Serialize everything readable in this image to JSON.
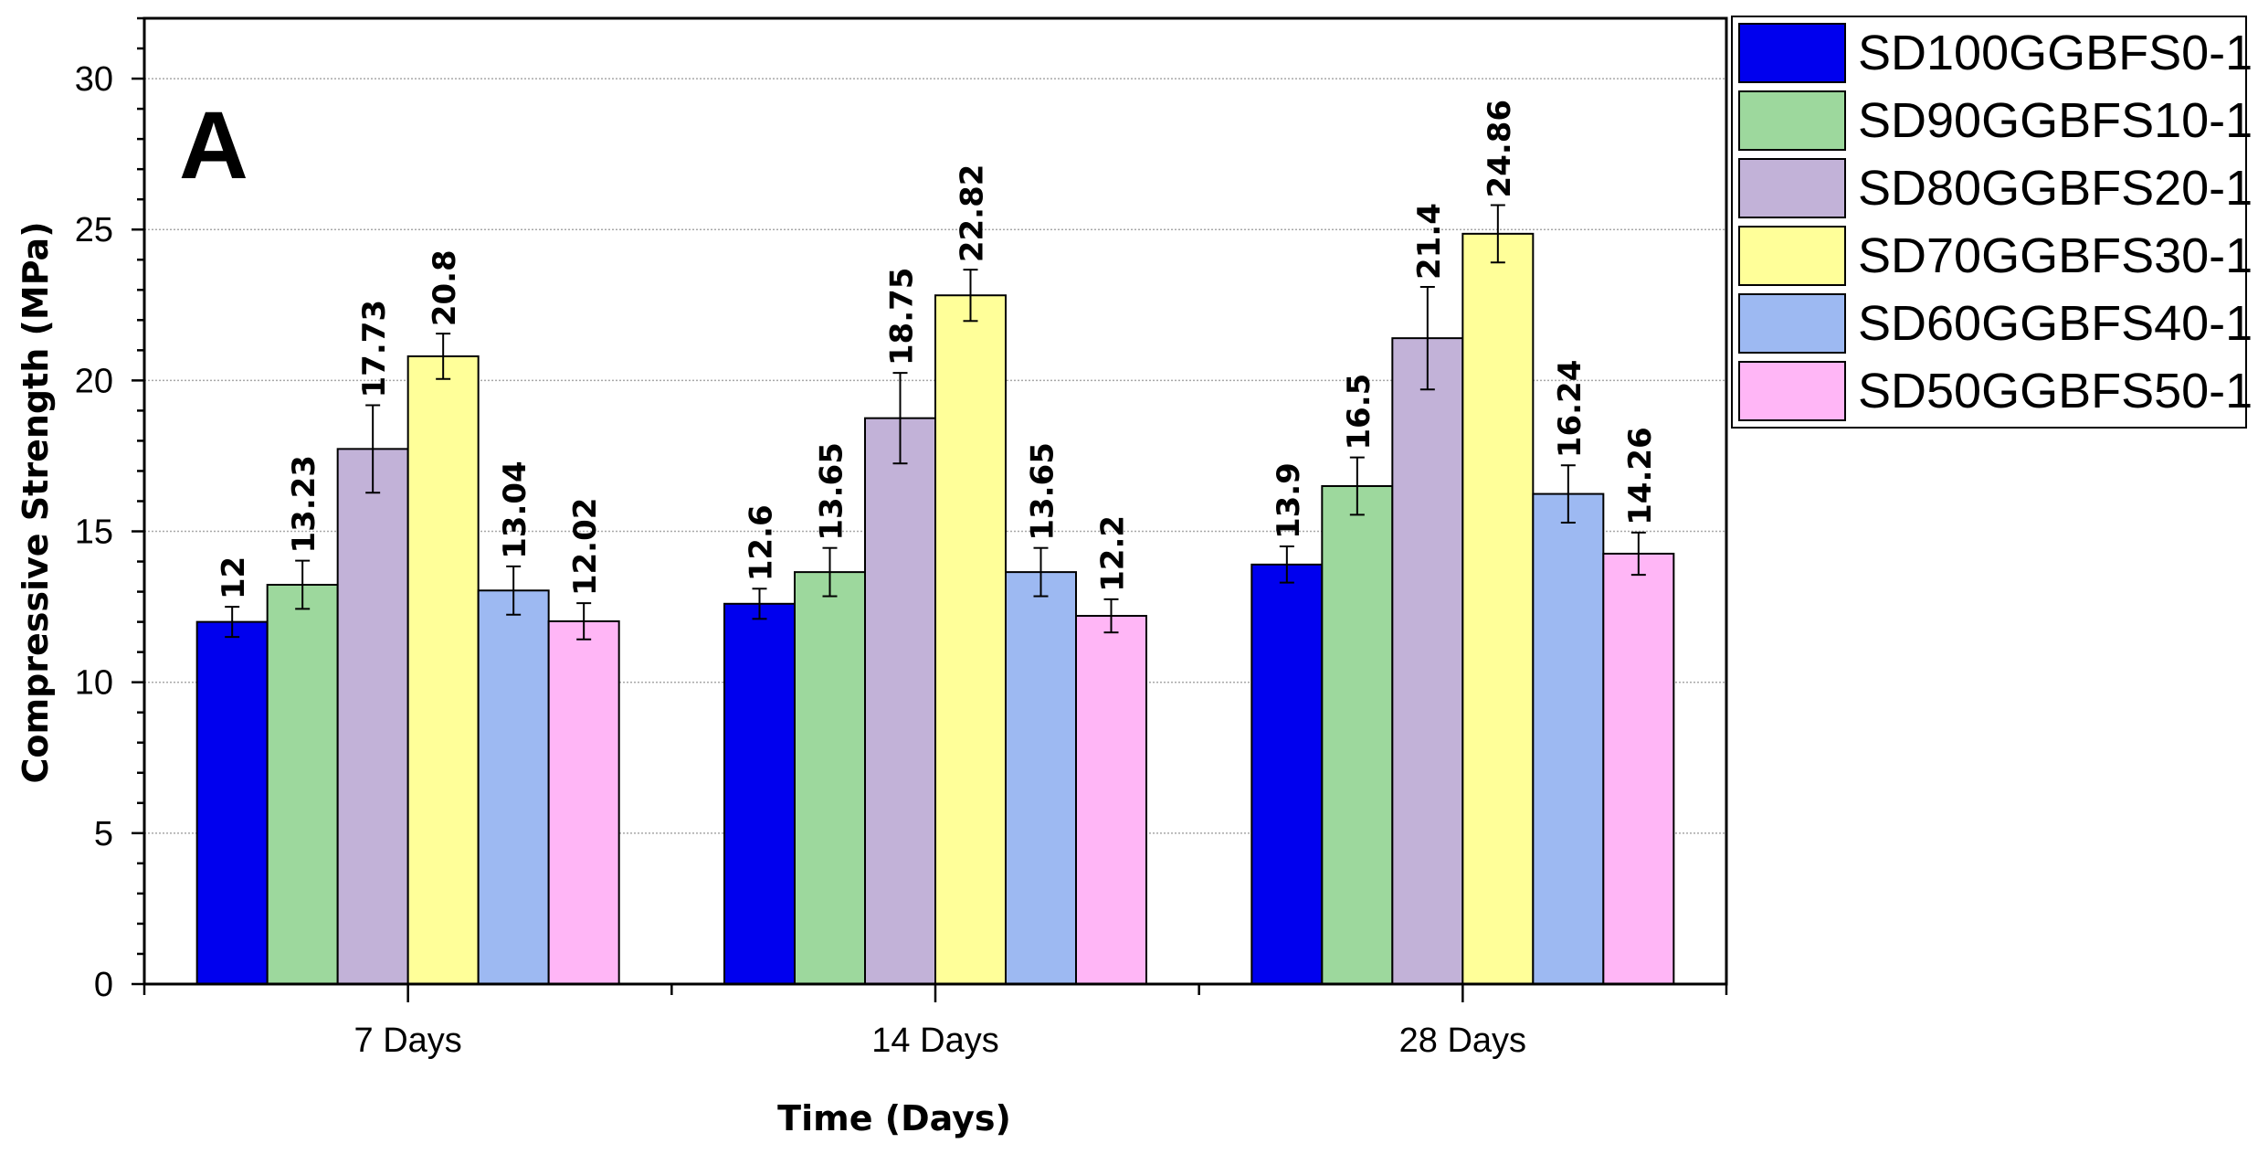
{
  "chart_data": {
    "type": "bar",
    "panel_label": "A",
    "xlabel": "Time (Days)",
    "ylabel": "Compressive Strength (MPa)",
    "ylim": [
      0,
      32
    ],
    "yticks": [
      0,
      5,
      10,
      15,
      20,
      25,
      30
    ],
    "grid": true,
    "legend_position": "outside-right-top",
    "categories": [
      "7 Days",
      "14 Days",
      "28 Days"
    ],
    "series": [
      {
        "name": "SD100GGBFS0-1",
        "color": "#0000ee",
        "values": [
          12,
          12.6,
          13.9
        ],
        "errors": [
          0.5,
          0.5,
          0.6
        ],
        "labels": [
          "12",
          "12.6",
          "13.9"
        ]
      },
      {
        "name": "SD90GGBFS10-1",
        "color": "#9dd89d",
        "values": [
          13.23,
          13.65,
          16.5
        ],
        "errors": [
          0.8,
          0.8,
          0.95
        ],
        "labels": [
          "13.23",
          "13.65",
          "16.5"
        ]
      },
      {
        "name": "SD80GGBFS20-1",
        "color": "#c2b2d8",
        "values": [
          17.73,
          18.75,
          21.4
        ],
        "errors": [
          1.45,
          1.5,
          1.7
        ],
        "labels": [
          "17.73",
          "18.75",
          "21.4"
        ]
      },
      {
        "name": "SD70GGBFS30-1",
        "color": "#ffff99",
        "values": [
          20.8,
          22.82,
          24.86
        ],
        "errors": [
          0.75,
          0.85,
          0.95
        ],
        "labels": [
          "20.8",
          "22.82",
          "24.86"
        ]
      },
      {
        "name": "SD60GGBFS40-1",
        "color": "#9db9f2",
        "values": [
          13.04,
          13.65,
          16.24
        ],
        "errors": [
          0.8,
          0.8,
          0.95
        ],
        "labels": [
          "13.04",
          "13.65",
          "16.24"
        ]
      },
      {
        "name": "SD50GGBFS50-1",
        "color": "#ffb6f6",
        "values": [
          12.02,
          12.2,
          14.26
        ],
        "errors": [
          0.6,
          0.55,
          0.7
        ],
        "labels": [
          "12.02",
          "12.2",
          "14.26"
        ]
      }
    ]
  }
}
